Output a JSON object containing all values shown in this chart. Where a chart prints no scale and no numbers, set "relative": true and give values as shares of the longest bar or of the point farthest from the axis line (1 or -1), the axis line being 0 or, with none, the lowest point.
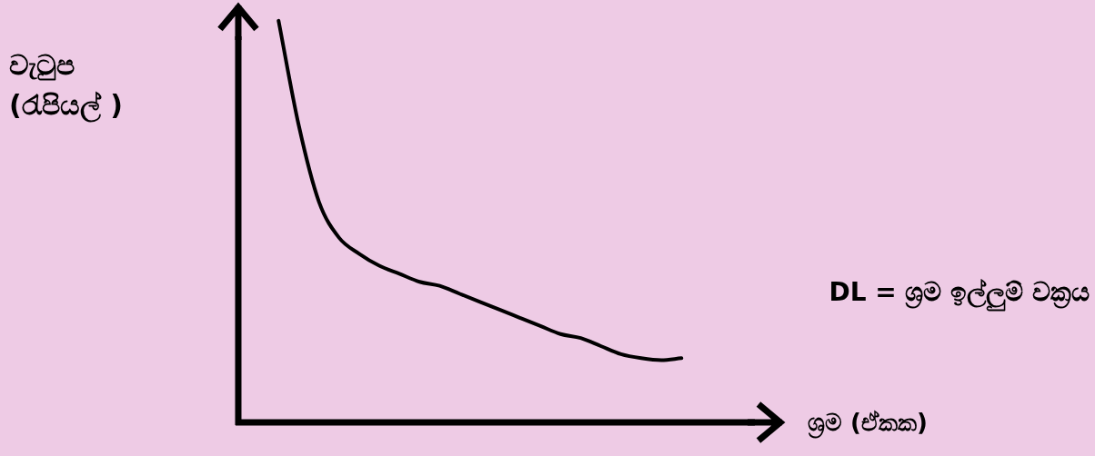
{
  "chart_data": {
    "type": "line",
    "relative": true,
    "ylabel": "වැටුප\n(රැපියල් )",
    "xlabel": "ශ්‍රම (ඒකක)",
    "annotations": [
      "DL = ශ්‍රම ඉල්ලුම් වක්‍රය"
    ],
    "categories": [
      null,
      null,
      null,
      null,
      null,
      null,
      null,
      null,
      null,
      null,
      null,
      null,
      null,
      null,
      null,
      null,
      null,
      null,
      null,
      null,
      null,
      null,
      null,
      null,
      null,
      null,
      null,
      null
    ],
    "values": [
      null,
      null,
      1,
      0.74,
      0.55,
      0.46,
      0.42,
      0.39,
      0.37,
      0.35,
      0.34,
      0.32,
      0.3,
      0.28,
      0.26,
      0.24,
      0.22,
      0.21,
      0.19,
      0.17,
      0.16,
      0.155,
      0.16,
      null,
      null,
      null,
      null,
      null
    ],
    "color": "#000000",
    "marker": "none",
    "line_style": "solid"
  }
}
